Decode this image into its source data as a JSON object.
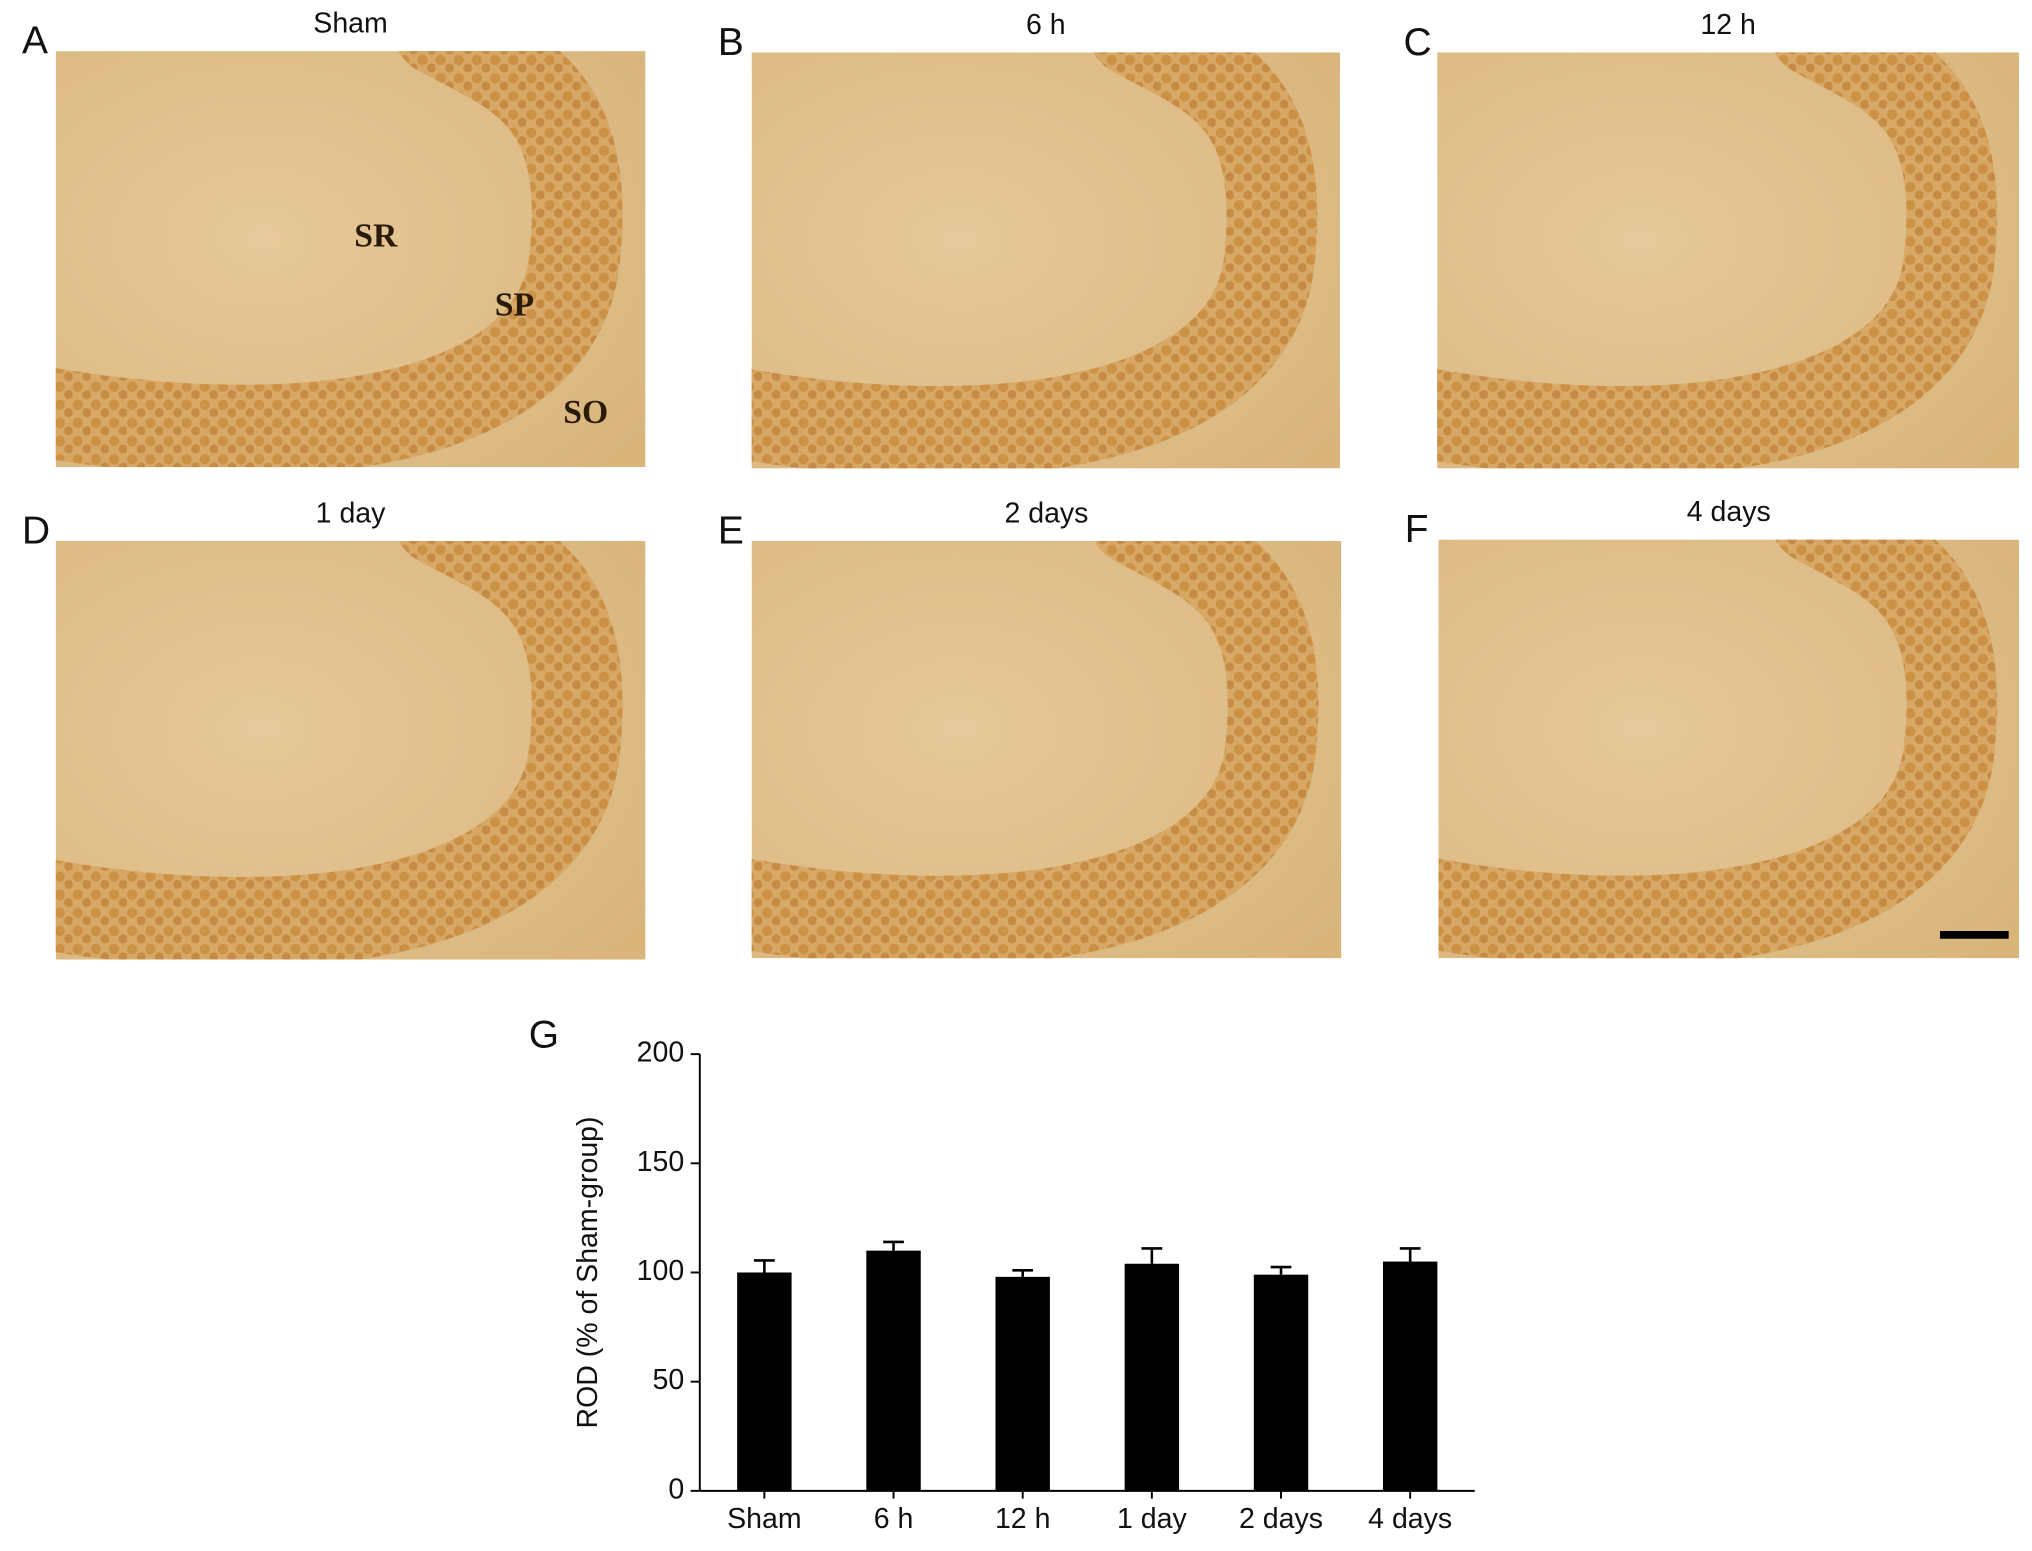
{
  "panels": [
    {
      "letter": "A",
      "title": "Sham",
      "annotations": [
        "SR",
        "SP",
        "SO"
      ]
    },
    {
      "letter": "B",
      "title": "6 h"
    },
    {
      "letter": "C",
      "title": "12 h"
    },
    {
      "letter": "D",
      "title": "1 day"
    },
    {
      "letter": "E",
      "title": "2 days"
    },
    {
      "letter": "F",
      "title": "4 days"
    }
  ],
  "chart_data": {
    "type": "bar",
    "panel_label": "G",
    "y_label": "ROD (% of Sham-group)",
    "categories": [
      "Sham",
      "6 h",
      "12 h",
      "1 day",
      "2 days",
      "4 days"
    ],
    "values": [
      100,
      110,
      98,
      104,
      99,
      105
    ],
    "errors": [
      5.5,
      4,
      3,
      7,
      3.5,
      6
    ],
    "color": "#000000",
    "ylim": [
      0,
      200
    ],
    "yticks": [
      0,
      50,
      100,
      150,
      200
    ]
  }
}
